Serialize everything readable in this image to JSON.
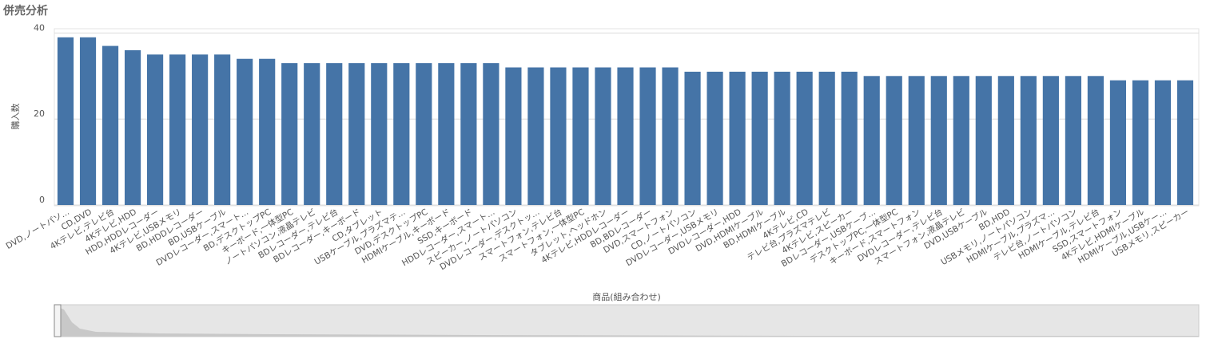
{
  "chart_data": {
    "type": "bar",
    "title": "併売分析",
    "y_label": "購入数",
    "x_label": "商品(組み合わせ)",
    "categories": [
      "DVD,ノートパソ…",
      "CD,DVD",
      "4Kテレビ,テレビ台",
      "4Kテレビ,HDD",
      "HDD,HDDレコーダー",
      "4Kテレビ,USBメモリ",
      "BD,HDDレコーダー",
      "BD,USBケーブル",
      "DVDレコーダー,スマート…",
      "BD,デスクトップPC",
      "キーボード,一体型PC",
      "ノートパソコン,液晶テレビ",
      "BDレコーダー,テレビ台",
      "BDレコーダー,キーボード",
      "CD,タブレット",
      "USBケーブル,プラズマテ…",
      "DVD,デスクトップPC",
      "HDMIケーブル,キーボード",
      "SSD,キーボード",
      "HDDレコーダー,スマート…",
      "スピーカー,ノートパソコン",
      "DVDレコーダー,デスクトッ…",
      "スマートフォン,テレビ台",
      "スマートフォン,一体型PC",
      "タブレット,ヘッドホン",
      "4Kテレビ,HDDレコーダー",
      "BD,BDレコーダー",
      "DVD,スマートフォン",
      "CD,ノートパソコン",
      "DVDレコーダー,USBメモリ",
      "DVDレコーダー,HDD",
      "DVD,HDMIケーブル",
      "BD,HDMIケーブル",
      "4Kテレビ,CD",
      "テレビ台,プラズマテレビ",
      "4Kテレビ,スピーカー",
      "BDレコーダー,USBケーブ…",
      "デスクトップPC,一体型PC",
      "キーボード,スマートフォン",
      "DVDレコーダー,テレビ台",
      "スマートフォン,液晶テレビ",
      "DVD,USBケーブル",
      "BD,HDD",
      "USBメモリ,ノートパソコン",
      "HDMIケーブル,プラズマ…",
      "テレビ台,ノートパソコン",
      "HDMIケーブル,テレビ台",
      "SSD,スマートフォン",
      "4Kテレビ,HDMIケーブル",
      "HDMIケーブル,USBケー…",
      "USBメモリ,スピーカー"
    ],
    "values": [
      39,
      39,
      37,
      36,
      35,
      35,
      35,
      35,
      34,
      34,
      33,
      33,
      33,
      33,
      33,
      33,
      33,
      33,
      33,
      33,
      32,
      32,
      32,
      32,
      32,
      32,
      32,
      32,
      31,
      31,
      31,
      31,
      31,
      31,
      31,
      31,
      30,
      30,
      30,
      30,
      30,
      30,
      30,
      30,
      30,
      30,
      30,
      29,
      29,
      29,
      29
    ],
    "color": "#4574a7",
    "ylim": [
      0,
      41
    ],
    "yticks": [
      0,
      20,
      40
    ],
    "grid": true
  }
}
